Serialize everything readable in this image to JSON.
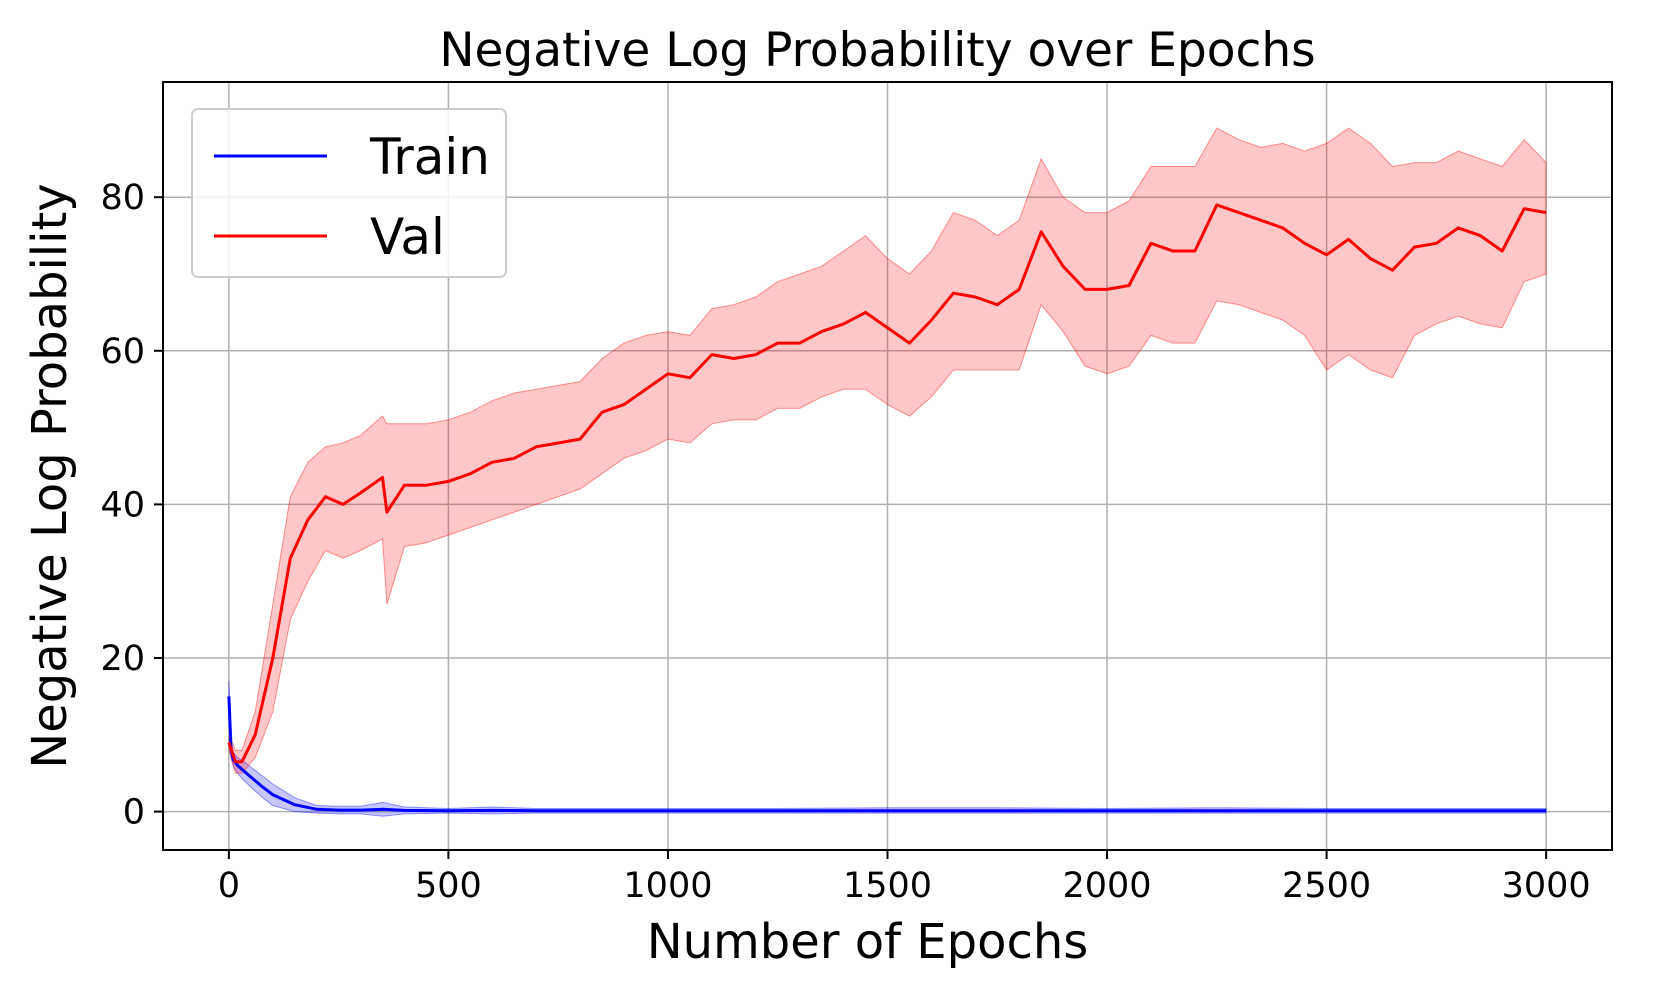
{
  "chart_data": {
    "type": "line",
    "title": "Negative Log Probability over Epochs",
    "xlabel": "Number of Epochs",
    "ylabel": "Negative Log Probability",
    "xlim": [
      -150,
      3150
    ],
    "ylim": [
      -5,
      95
    ],
    "xticks": [
      0,
      500,
      1000,
      1500,
      2000,
      2500,
      3000
    ],
    "yticks": [
      0,
      20,
      40,
      60,
      80
    ],
    "grid": true,
    "legend_position": "top-left",
    "series": [
      {
        "name": "Train",
        "color": "#0000ff",
        "band_color": "#0000ff",
        "x": [
          0,
          5,
          10,
          20,
          30,
          50,
          75,
          100,
          150,
          200,
          250,
          300,
          350,
          400,
          500,
          600,
          700,
          800,
          900,
          1000,
          1250,
          1500,
          1750,
          2000,
          2250,
          2500,
          2750,
          3000
        ],
        "y": [
          15.0,
          8.0,
          6.8,
          6.0,
          5.5,
          4.5,
          3.3,
          2.2,
          0.9,
          0.3,
          0.2,
          0.2,
          0.3,
          0.15,
          0.1,
          0.15,
          0.1,
          0.1,
          0.1,
          0.1,
          0.1,
          0.1,
          0.1,
          0.1,
          0.1,
          0.1,
          0.1,
          0.1
        ],
        "lower": [
          13.0,
          7.0,
          5.9,
          5.0,
          4.3,
          3.2,
          1.9,
          0.8,
          0.0,
          -0.2,
          -0.3,
          -0.3,
          -0.6,
          -0.3,
          -0.2,
          -0.3,
          -0.2,
          -0.2,
          -0.2,
          -0.2,
          -0.2,
          -0.2,
          -0.2,
          -0.2,
          -0.2,
          -0.2,
          -0.2,
          -0.2
        ],
        "upper": [
          17.0,
          9.0,
          7.7,
          7.0,
          6.7,
          5.8,
          4.7,
          3.6,
          1.8,
          0.8,
          0.7,
          0.7,
          1.2,
          0.6,
          0.4,
          0.6,
          0.4,
          0.4,
          0.4,
          0.4,
          0.4,
          0.5,
          0.5,
          0.4,
          0.5,
          0.4,
          0.4,
          0.4
        ]
      },
      {
        "name": "Val",
        "color": "#ff0000",
        "band_color": "#ff0000",
        "x": [
          0,
          15,
          30,
          60,
          100,
          140,
          180,
          220,
          260,
          300,
          350,
          360,
          400,
          450,
          500,
          550,
          600,
          650,
          700,
          750,
          800,
          850,
          900,
          950,
          1000,
          1050,
          1100,
          1150,
          1200,
          1250,
          1300,
          1350,
          1400,
          1450,
          1500,
          1550,
          1600,
          1650,
          1700,
          1750,
          1800,
          1850,
          1900,
          1950,
          2000,
          2050,
          2100,
          2150,
          2200,
          2250,
          2300,
          2350,
          2400,
          2450,
          2500,
          2550,
          2600,
          2650,
          2700,
          2750,
          2800,
          2850,
          2900,
          2950,
          3000
        ],
        "y": [
          9.0,
          6.5,
          6.5,
          10.0,
          20.0,
          33.0,
          38.0,
          41.0,
          40.0,
          41.5,
          43.5,
          39.0,
          42.5,
          42.5,
          43.0,
          44.0,
          45.5,
          46.0,
          47.5,
          48.0,
          48.5,
          52.0,
          53.0,
          55.0,
          57.0,
          56.5,
          59.5,
          59.0,
          59.5,
          61.0,
          61.0,
          62.5,
          63.5,
          65.0,
          63.0,
          61.0,
          64.0,
          67.5,
          67.0,
          66.0,
          68.0,
          75.5,
          71.0,
          68.0,
          68.0,
          68.5,
          74.0,
          73.0,
          73.0,
          79.0,
          78.0,
          77.0,
          76.0,
          74.0,
          72.5,
          74.5,
          72.0,
          70.5,
          73.5,
          74.0,
          76.0,
          75.0,
          73.0,
          78.5,
          78.0
        ],
        "lower": [
          8.0,
          5.0,
          5.0,
          7.0,
          13.0,
          25.0,
          30.0,
          34.0,
          33.0,
          34.0,
          35.5,
          27.0,
          34.5,
          35.0,
          36.0,
          37.0,
          38.0,
          39.0,
          40.0,
          41.0,
          42.0,
          44.0,
          46.0,
          47.0,
          48.5,
          48.0,
          50.5,
          51.0,
          51.0,
          52.5,
          52.5,
          54.0,
          55.0,
          55.0,
          53.0,
          51.5,
          54.0,
          57.5,
          57.5,
          57.5,
          57.5,
          66.0,
          62.5,
          58.0,
          57.0,
          58.0,
          62.0,
          61.0,
          61.0,
          66.5,
          66.0,
          65.0,
          64.0,
          62.0,
          57.5,
          59.5,
          57.5,
          56.5,
          62.0,
          63.5,
          64.5,
          63.5,
          63.0,
          69.0,
          70.0
        ],
        "upper": [
          10.0,
          8.0,
          8.0,
          13.0,
          27.0,
          41.0,
          45.5,
          47.5,
          48.0,
          49.0,
          51.5,
          50.5,
          50.5,
          50.5,
          51.0,
          52.0,
          53.5,
          54.5,
          55.0,
          55.5,
          56.0,
          59.0,
          61.0,
          62.0,
          62.5,
          62.0,
          65.5,
          66.0,
          67.0,
          69.0,
          70.0,
          71.0,
          73.0,
          75.0,
          72.0,
          70.0,
          73.0,
          78.0,
          77.0,
          75.0,
          77.0,
          85.0,
          80.0,
          78.0,
          78.0,
          79.5,
          84.0,
          84.0,
          84.0,
          89.0,
          87.5,
          86.5,
          87.0,
          86.0,
          87.0,
          89.0,
          87.0,
          84.0,
          84.5,
          84.5,
          86.0,
          85.0,
          84.0,
          87.5,
          84.5
        ]
      }
    ]
  }
}
